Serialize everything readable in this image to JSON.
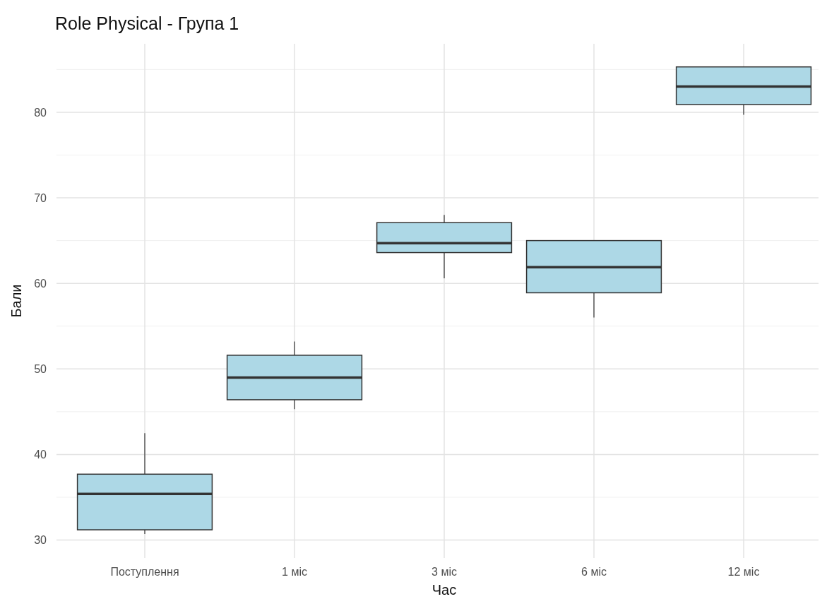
{
  "chart_data": {
    "type": "box",
    "title": "Role Physical - Група 1",
    "xlabel": "Час",
    "ylabel": "Бали",
    "categories": [
      "Поступлення",
      "1 міс",
      "3 міс",
      "6 міс",
      "12 міс"
    ],
    "boxes": [
      {
        "low": 30.7,
        "q1": 31.2,
        "median": 35.4,
        "q3": 37.7,
        "high": 42.5
      },
      {
        "low": 45.3,
        "q1": 46.4,
        "median": 49.0,
        "q3": 51.6,
        "high": 53.2
      },
      {
        "low": 60.6,
        "q1": 63.6,
        "median": 64.7,
        "q3": 67.1,
        "high": 68.0
      },
      {
        "low": 56.0,
        "q1": 58.9,
        "median": 61.9,
        "q3": 65.0,
        "high": 65.0
      },
      {
        "low": 79.7,
        "q1": 80.9,
        "median": 83.0,
        "q3": 85.3,
        "high": 85.3
      }
    ],
    "color": "#add8e6",
    "ylim": [
      27.9,
      88
    ],
    "yticks": [
      30,
      40,
      50,
      60,
      70,
      80
    ],
    "grid": true
  }
}
